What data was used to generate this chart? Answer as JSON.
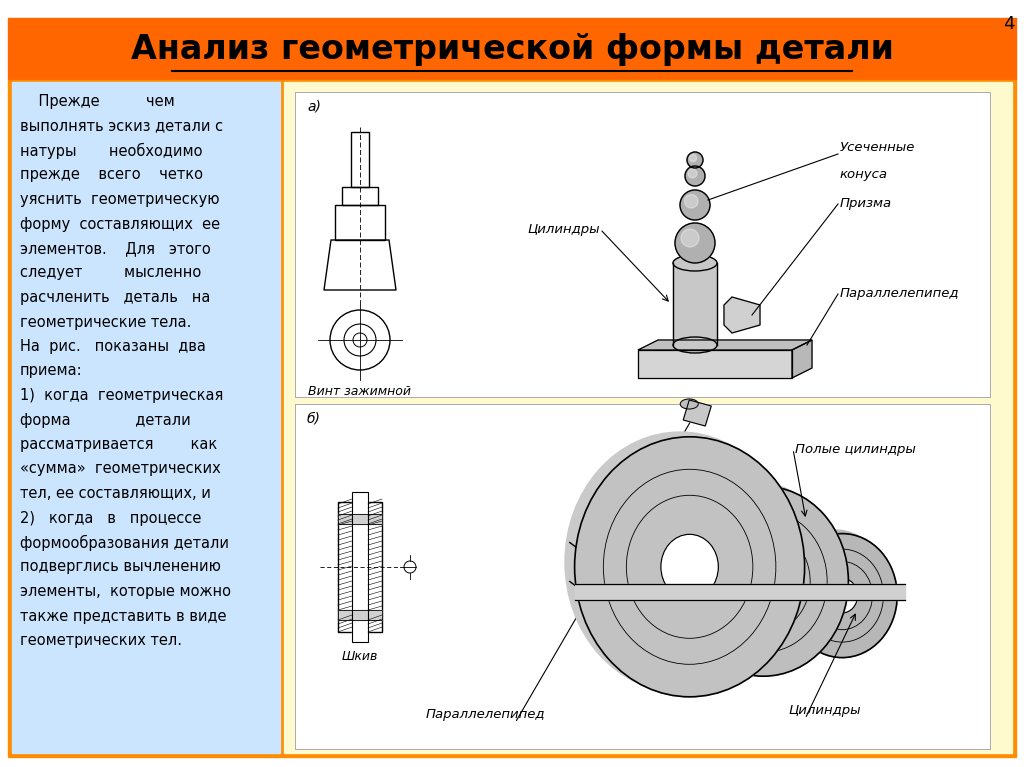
{
  "title": "Анализ геометрической формы детали",
  "title_bg": "#FF6600",
  "title_color": "#000000",
  "page_bg": "#FFFFFF",
  "left_panel_bg": "#CCE5FF",
  "right_panel_bg": "#FFFACD",
  "border_color": "#FF8C00",
  "drawing_bg": "#FFFFFF",
  "page_number": "4",
  "body_text_lines": [
    "    Прежде          чем",
    "выполнять эскиз детали с",
    "натуры       необходимо",
    "прежде    всего    четко",
    "уяснить  геометрическую",
    "форму  составляющих  ее",
    "элементов.    Для   этого",
    "следует         мысленно",
    "расчленить   деталь   на",
    "геометрические тела.",
    "На  рис.   показаны  два",
    "приема:",
    "1)  когда  геометрическая",
    "форма              детали",
    "рассматривается        как",
    "«сумма»  геометрических",
    "тел, ее составляющих, и",
    "2)   когда   в   процессе",
    "формообразования детали",
    "подверглись вычленению",
    "элементы,  которые можно",
    "также представить в виде",
    "геометрических тел."
  ],
  "label_a": "а)",
  "label_b": "б)",
  "label_vint": "Винт зажимной",
  "label_shkiv": "Шкив",
  "label_tsylindry_a": "Цилиндры",
  "label_usech_1": "Усеченные",
  "label_usech_2": "конуса",
  "label_prizma": "Призма",
  "label_parallelepiped_a": "Параллелепипед",
  "label_poly_tsyl": "Полые цилиндры",
  "label_parallelepiped_b": "Параллелепипед",
  "label_tsylindry_b": "Цилиндры",
  "title_fontsize": 24,
  "body_fontsize": 10.5,
  "label_fontsize": 9.5,
  "gray_fill": "#C8C8C8",
  "gray_dark": "#A0A0A0",
  "gray_light": "#E8E8E8",
  "stipple_color": "#B0B0B0"
}
